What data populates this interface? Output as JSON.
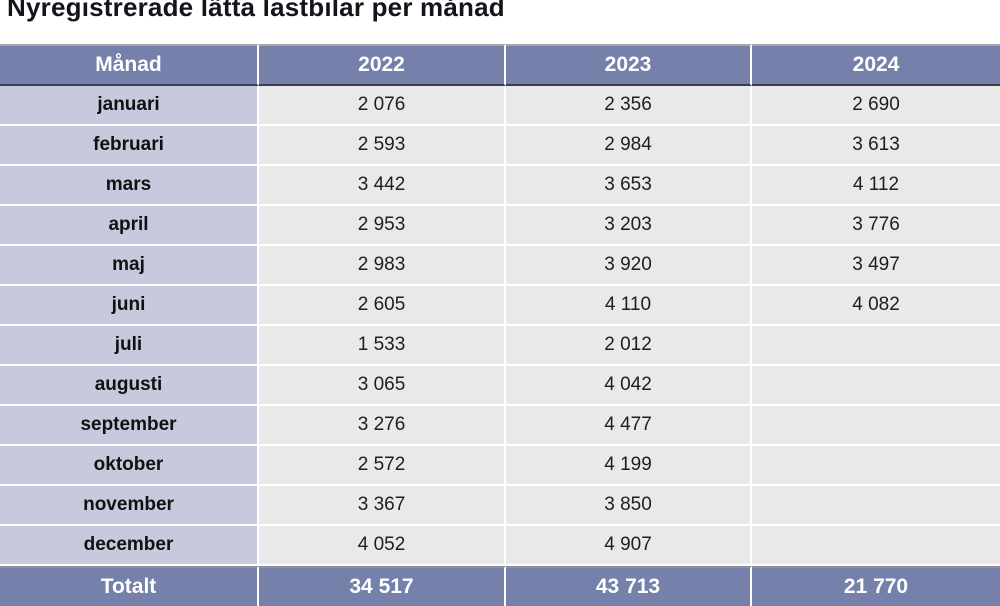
{
  "title": "Nyregistrerade lätta lastbilar per månad",
  "colors": {
    "header_bg": "#7581ab",
    "header_text": "#ffffff",
    "month_col_bg": "#c7c9dc",
    "value_cell_bg": "#e9e9e9",
    "month_text": "#111111",
    "value_text": "#1e1e1e",
    "title_color": "#14141c",
    "table_top_line": "#a7a7a7",
    "header_underline": "#3c3e54",
    "total_top_line": "#90909b"
  },
  "chart_data": {
    "type": "table",
    "title": "Nyregistrerade lätta lastbilar per månad",
    "categories": [
      "januari",
      "februari",
      "mars",
      "april",
      "maj",
      "juni",
      "juli",
      "augusti",
      "september",
      "oktober",
      "november",
      "december"
    ],
    "series": [
      {
        "name": "2022",
        "values": [
          2076,
          2593,
          3442,
          2953,
          2983,
          2605,
          1533,
          3065,
          3276,
          2572,
          3367,
          4052
        ]
      },
      {
        "name": "2023",
        "values": [
          2356,
          2984,
          3653,
          3203,
          3920,
          4110,
          2012,
          4042,
          4477,
          4199,
          3850,
          4907
        ]
      },
      {
        "name": "2024",
        "values": [
          2690,
          3613,
          4112,
          3776,
          3497,
          4082,
          null,
          null,
          null,
          null,
          null,
          null
        ]
      }
    ],
    "totals": {
      "2022": 34517,
      "2023": 43713,
      "2024": 21770
    }
  },
  "table": {
    "columns": [
      "Månad",
      "2022",
      "2023",
      "2024"
    ],
    "rows": [
      {
        "month": "januari",
        "y2022": "2 076",
        "y2023": "2 356",
        "y2024": "2 690"
      },
      {
        "month": "februari",
        "y2022": "2 593",
        "y2023": "2 984",
        "y2024": "3 613"
      },
      {
        "month": "mars",
        "y2022": "3 442",
        "y2023": "3 653",
        "y2024": "4 112"
      },
      {
        "month": "april",
        "y2022": "2 953",
        "y2023": "3 203",
        "y2024": "3 776"
      },
      {
        "month": "maj",
        "y2022": "2 983",
        "y2023": "3 920",
        "y2024": "3 497"
      },
      {
        "month": "juni",
        "y2022": "2 605",
        "y2023": "4 110",
        "y2024": "4 082"
      },
      {
        "month": "juli",
        "y2022": "1 533",
        "y2023": "2 012",
        "y2024": ""
      },
      {
        "month": "augusti",
        "y2022": "3 065",
        "y2023": "4 042",
        "y2024": ""
      },
      {
        "month": "september",
        "y2022": "3 276",
        "y2023": "4 477",
        "y2024": ""
      },
      {
        "month": "oktober",
        "y2022": "2 572",
        "y2023": "4 199",
        "y2024": ""
      },
      {
        "month": "november",
        "y2022": "3 367",
        "y2023": "3 850",
        "y2024": ""
      },
      {
        "month": "december",
        "y2022": "4 052",
        "y2023": "4 907",
        "y2024": ""
      }
    ],
    "total": {
      "label": "Totalt",
      "y2022": "34 517",
      "y2023": "43 713",
      "y2024": "21 770"
    }
  }
}
